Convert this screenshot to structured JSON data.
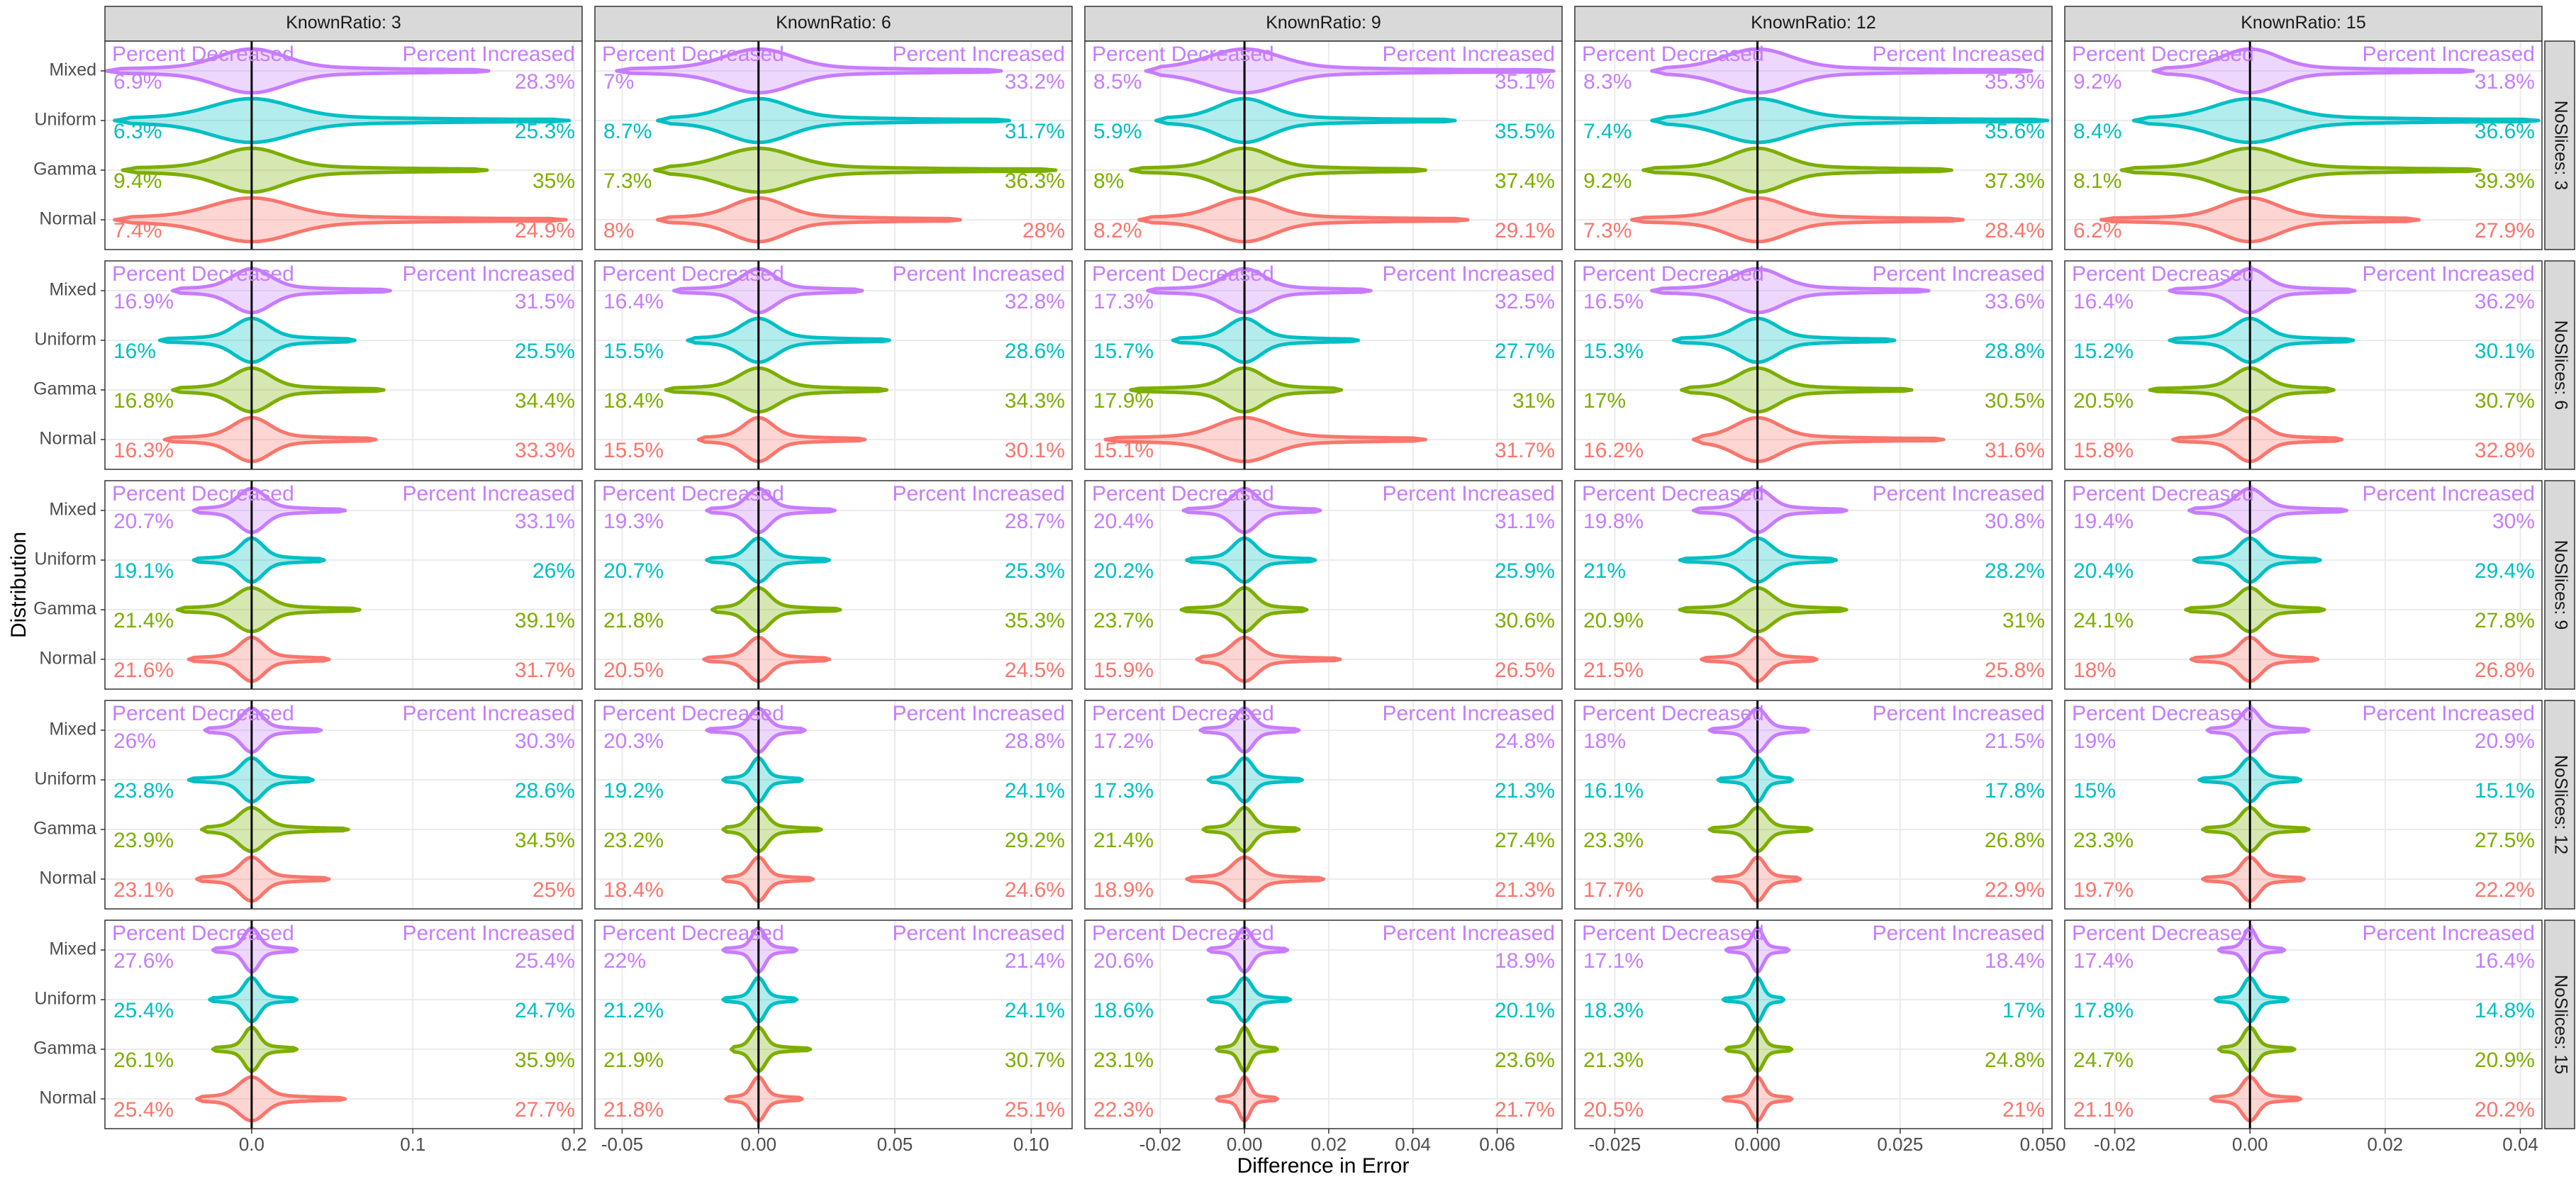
{
  "chart_data": {
    "type": "violin",
    "x_label": "Difference in Error",
    "y_label": "Distribution",
    "categories": [
      "Mixed",
      "Uniform",
      "Gamma",
      "Normal"
    ],
    "colors": [
      "#C77CFF",
      "#00BFC4",
      "#7CAE00",
      "#F8766D"
    ],
    "annotation_left": "Percent Decreased",
    "annotation_right": "Percent Increased",
    "annotation_color": "#C77CFF",
    "reference_line": 0,
    "grid": true,
    "column_labels": [
      "KnownRatio: 3",
      "KnownRatio: 6",
      "KnownRatio: 9",
      "KnownRatio: 12",
      "KnownRatio: 15"
    ],
    "row_labels": [
      "NoSlices: 3",
      "NoSlices: 6",
      "NoSlices: 9",
      "NoSlices: 12",
      "NoSlices: 15"
    ],
    "columns": [
      {
        "xlim": [
          -0.091,
          0.205
        ],
        "xticks": [
          {
            "value": 0,
            "label": "0.0"
          },
          0.1,
          0.2
        ]
      },
      {
        "xlim": [
          -0.06,
          0.115
        ],
        "xticks": [
          -0.05,
          {
            "value": 0,
            "label": "0.00"
          },
          0.05,
          {
            "value": 0.1,
            "label": "0.10"
          }
        ]
      },
      {
        "xlim": [
          -0.0379,
          0.0754
        ],
        "xticks": [
          -0.02,
          {
            "value": 0,
            "label": "0.00"
          },
          0.02,
          0.04,
          0.06
        ]
      },
      {
        "xlim": [
          -0.032,
          0.0516
        ],
        "xticks": [
          -0.025,
          {
            "value": 0,
            "label": "0.000"
          },
          0.025,
          {
            "value": 0.05,
            "label": "0.050"
          }
        ]
      },
      {
        "xlim": [
          -0.0274,
          0.0432
        ],
        "xticks": [
          -0.02,
          {
            "value": 0,
            "label": "0.00"
          },
          0.02,
          0.04
        ]
      }
    ],
    "panels": [
      [
        {
          "min": [
            -0.09,
            -0.085,
            -0.08,
            -0.085
          ],
          "max": [
            0.147,
            0.197,
            0.146,
            0.195
          ],
          "decreased": [
            6.9,
            6.3,
            9.4,
            7.4
          ],
          "decreased_labels": [
            "6.9%",
            "6.3%",
            "9.4%",
            "7.4%"
          ],
          "increased": [
            28.3,
            25.3,
            35,
            24.9
          ],
          "increased_labels": [
            "28.3%",
            "25.3%",
            "35%",
            "24.9%"
          ]
        },
        {
          "min": [
            -0.052,
            -0.037,
            -0.038,
            -0.037
          ],
          "max": [
            0.089,
            0.092,
            0.109,
            0.074
          ],
          "decreased": [
            7,
            8.7,
            7.3,
            8
          ],
          "decreased_labels": [
            "7%",
            "8.7%",
            "7.3%",
            "8%"
          ],
          "increased": [
            33.2,
            31.7,
            36.3,
            28
          ],
          "increased_labels": [
            "33.2%",
            "31.7%",
            "36.3%",
            "28%"
          ]
        },
        {
          "min": [
            -0.0234,
            -0.021,
            -0.027,
            -0.025
          ],
          "max": [
            0.0734,
            0.05,
            0.043,
            0.053
          ],
          "decreased": [
            8.5,
            5.9,
            8,
            8.2
          ],
          "decreased_labels": [
            "8.5%",
            "5.9%",
            "8%",
            "8.2%"
          ],
          "increased": [
            35.1,
            35.5,
            37.4,
            29.1
          ],
          "increased_labels": [
            "35.1%",
            "35.5%",
            "37.4%",
            "29.1%"
          ]
        },
        {
          "min": [
            -0.0185,
            -0.0185,
            -0.02,
            -0.022
          ],
          "max": [
            0.048,
            0.0508,
            0.034,
            0.036
          ],
          "decreased": [
            8.3,
            7.4,
            9.2,
            7.3
          ],
          "decreased_labels": [
            "8.3%",
            "7.4%",
            "9.2%",
            "7.3%"
          ],
          "increased": [
            35.3,
            35.6,
            37.3,
            28.4
          ],
          "increased_labels": [
            "35.3%",
            "35.6%",
            "37.3%",
            "28.4%"
          ]
        },
        {
          "min": [
            -0.0143,
            -0.0172,
            -0.019,
            -0.022
          ],
          "max": [
            0.033,
            0.0427,
            0.034,
            0.025
          ],
          "decreased": [
            9.2,
            8.4,
            8.1,
            6.2
          ],
          "decreased_labels": [
            "9.2%",
            "8.4%",
            "8.1%",
            "6.2%"
          ],
          "increased": [
            31.8,
            36.6,
            39.3,
            27.9
          ],
          "increased_labels": [
            "31.8%",
            "36.6%",
            "39.3%",
            "27.9%"
          ]
        }
      ],
      [
        {
          "min": [
            -0.049,
            -0.057,
            -0.049,
            -0.054
          ],
          "max": [
            0.086,
            0.064,
            0.082,
            0.077
          ],
          "decreased": [
            16.9,
            16,
            16.8,
            16.3
          ],
          "decreased_labels": [
            "16.9%",
            "16%",
            "16.8%",
            "16.3%"
          ],
          "increased": [
            31.5,
            25.5,
            34.4,
            33.3
          ],
          "increased_labels": [
            "31.5%",
            "25.5%",
            "34.4%",
            "33.3%"
          ]
        },
        {
          "min": [
            -0.031,
            -0.026,
            -0.034,
            -0.022
          ],
          "max": [
            0.038,
            0.048,
            0.047,
            0.039
          ],
          "decreased": [
            16.4,
            15.5,
            18.4,
            15.5
          ],
          "decreased_labels": [
            "16.4%",
            "15.5%",
            "18.4%",
            "15.5%"
          ],
          "increased": [
            32.8,
            28.6,
            34.3,
            30.1
          ],
          "increased_labels": [
            "32.8%",
            "28.6%",
            "34.3%",
            "30.1%"
          ]
        },
        {
          "min": [
            -0.023,
            -0.017,
            -0.027,
            -0.033
          ],
          "max": [
            0.03,
            0.027,
            0.023,
            0.043
          ],
          "decreased": [
            17.3,
            15.7,
            17.9,
            15.1
          ],
          "decreased_labels": [
            "17.3%",
            "15.7%",
            "17.9%",
            "15.1%"
          ],
          "increased": [
            32.5,
            27.7,
            31,
            31.7
          ],
          "increased_labels": [
            "32.5%",
            "27.7%",
            "31%",
            "31.7%"
          ]
        },
        {
          "min": [
            -0.0185,
            -0.0147,
            -0.0133,
            -0.0112
          ],
          "max": [
            0.03,
            0.024,
            0.027,
            0.0326
          ],
          "decreased": [
            16.5,
            15.3,
            17,
            16.2
          ],
          "decreased_labels": [
            "16.5%",
            "15.3%",
            "17%",
            "16.2%"
          ],
          "increased": [
            33.6,
            28.8,
            30.5,
            31.6
          ],
          "increased_labels": [
            "33.6%",
            "28.8%",
            "30.5%",
            "31.6%"
          ]
        },
        {
          "min": [
            -0.0119,
            -0.0119,
            -0.0148,
            -0.0114
          ],
          "max": [
            0.0155,
            0.0153,
            0.0124,
            0.0136
          ],
          "decreased": [
            16.4,
            15.2,
            20.5,
            15.8
          ],
          "decreased_labels": [
            "16.4%",
            "15.2%",
            "20.5%",
            "15.8%"
          ],
          "increased": [
            36.2,
            30.1,
            30.7,
            32.8
          ],
          "increased_labels": [
            "36.2%",
            "30.1%",
            "30.7%",
            "32.8%"
          ]
        }
      ],
      [
        {
          "min": [
            -0.036,
            -0.036,
            -0.046,
            -0.039
          ],
          "max": [
            0.058,
            0.045,
            0.067,
            0.048
          ],
          "decreased": [
            20.7,
            19.1,
            21.4,
            21.6
          ],
          "decreased_labels": [
            "20.7%",
            "19.1%",
            "21.4%",
            "21.6%"
          ],
          "increased": [
            33.1,
            26,
            39.1,
            31.7
          ],
          "increased_labels": [
            "33.1%",
            "26%",
            "39.1%",
            "31.7%"
          ]
        },
        {
          "min": [
            -0.019,
            -0.019,
            -0.017,
            -0.02
          ],
          "max": [
            0.028,
            0.026,
            0.03,
            0.026
          ],
          "decreased": [
            19.3,
            20.7,
            21.8,
            20.5
          ],
          "decreased_labels": [
            "19.3%",
            "20.7%",
            "21.8%",
            "20.5%"
          ],
          "increased": [
            28.7,
            25.3,
            35.3,
            24.5
          ],
          "increased_labels": [
            "28.7%",
            "25.3%",
            "35.3%",
            "24.5%"
          ]
        },
        {
          "min": [
            -0.0145,
            -0.0137,
            -0.015,
            -0.0113
          ],
          "max": [
            0.018,
            0.0168,
            0.0148,
            0.0227
          ],
          "decreased": [
            20.4,
            20.2,
            23.7,
            15.9
          ],
          "decreased_labels": [
            "20.4%",
            "20.2%",
            "23.7%",
            "15.9%"
          ],
          "increased": [
            31.1,
            25.9,
            30.6,
            26.5
          ],
          "increased_labels": [
            "31.1%",
            "25.9%",
            "30.6%",
            "26.5%"
          ]
        },
        {
          "min": [
            -0.0112,
            -0.0136,
            -0.0136,
            -0.0098
          ],
          "max": [
            0.0156,
            0.0138,
            0.0156,
            0.0104
          ],
          "decreased": [
            19.8,
            21,
            20.9,
            21.5
          ],
          "decreased_labels": [
            "19.8%",
            "21%",
            "20.9%",
            "21.5%"
          ],
          "increased": [
            30.8,
            28.2,
            31,
            25.8
          ],
          "increased_labels": [
            "30.8%",
            "28.2%",
            "31%",
            "25.8%"
          ]
        },
        {
          "min": [
            -0.009,
            -0.0083,
            -0.0095,
            -0.0087
          ],
          "max": [
            0.0143,
            0.0104,
            0.011,
            0.01
          ],
          "decreased": [
            19.4,
            20.4,
            24.1,
            18
          ],
          "decreased_labels": [
            "19.4%",
            "20.4%",
            "24.1%",
            "18%"
          ],
          "increased": [
            30,
            29.4,
            27.8,
            26.8
          ],
          "increased_labels": [
            "30%",
            "29.4%",
            "27.8%",
            "26.8%"
          ]
        }
      ],
      [
        {
          "min": [
            -0.029,
            -0.039,
            -0.031,
            -0.034
          ],
          "max": [
            0.043,
            0.038,
            0.06,
            0.048
          ],
          "decreased": [
            26,
            23.8,
            23.9,
            23.1
          ],
          "decreased_labels": [
            "26%",
            "23.8%",
            "23.9%",
            "23.1%"
          ],
          "increased": [
            30.3,
            28.6,
            34.5,
            25
          ],
          "increased_labels": [
            "30.3%",
            "28.6%",
            "34.5%",
            "25%"
          ]
        },
        {
          "min": [
            -0.019,
            -0.013,
            -0.013,
            -0.013
          ],
          "max": [
            0.017,
            0.016,
            0.023,
            0.02
          ],
          "decreased": [
            20.3,
            19.2,
            23.2,
            18.4
          ],
          "decreased_labels": [
            "20.3%",
            "19.2%",
            "23.2%",
            "18.4%"
          ],
          "increased": [
            28.8,
            24.1,
            29.2,
            24.6
          ],
          "increased_labels": [
            "28.8%",
            "24.1%",
            "29.2%",
            "24.6%"
          ]
        },
        {
          "min": [
            -0.0105,
            -0.0086,
            -0.0098,
            -0.0137
          ],
          "max": [
            0.0129,
            0.0137,
            0.0129,
            0.0188
          ],
          "decreased": [
            17.2,
            17.3,
            21.4,
            18.9
          ],
          "decreased_labels": [
            "17.2%",
            "17.3%",
            "21.4%",
            "18.9%"
          ],
          "increased": [
            24.8,
            21.3,
            27.4,
            21.3
          ],
          "increased_labels": [
            "24.8%",
            "21.3%",
            "27.4%",
            "21.3%"
          ]
        },
        {
          "min": [
            -0.0084,
            -0.0069,
            -0.0084,
            -0.0078
          ],
          "max": [
            0.0089,
            0.0061,
            0.0095,
            0.0075
          ],
          "decreased": [
            18,
            16.1,
            23.3,
            17.7
          ],
          "decreased_labels": [
            "18%",
            "16.1%",
            "23.3%",
            "17.7%"
          ],
          "increased": [
            21.5,
            17.8,
            26.8,
            22.9
          ],
          "increased_labels": [
            "21.5%",
            "17.8%",
            "26.8%",
            "22.9%"
          ]
        },
        {
          "min": [
            -0.0063,
            -0.0075,
            -0.007,
            -0.007
          ],
          "max": [
            0.0087,
            0.0075,
            0.0087,
            0.008
          ],
          "decreased": [
            19,
            15,
            23.3,
            19.7
          ],
          "decreased_labels": [
            "19%",
            "15%",
            "23.3%",
            "19.7%"
          ],
          "increased": [
            20.9,
            15.1,
            27.5,
            22.2
          ],
          "increased_labels": [
            "20.9%",
            "15.1%",
            "27.5%",
            "22.2%"
          ]
        }
      ],
      [
        {
          "min": [
            -0.024,
            -0.026,
            -0.024,
            -0.034
          ],
          "max": [
            0.028,
            0.028,
            0.028,
            0.058
          ],
          "decreased": [
            27.6,
            25.4,
            26.1,
            25.4
          ],
          "decreased_labels": [
            "27.6%",
            "25.4%",
            "26.1%",
            "25.4%"
          ],
          "increased": [
            25.4,
            24.7,
            35.9,
            27.7
          ],
          "increased_labels": [
            "25.4%",
            "24.7%",
            "35.9%",
            "27.7%"
          ]
        },
        {
          "min": [
            -0.013,
            -0.013,
            -0.01,
            -0.012
          ],
          "max": [
            0.014,
            0.014,
            0.019,
            0.016
          ],
          "decreased": [
            22,
            21.2,
            21.9,
            21.8
          ],
          "decreased_labels": [
            "22%",
            "21.2%",
            "21.9%",
            "21.8%"
          ],
          "increased": [
            21.4,
            24.1,
            30.7,
            25.1
          ],
          "increased_labels": [
            "21.4%",
            "24.1%",
            "30.7%",
            "25.1%"
          ]
        },
        {
          "min": [
            -0.0086,
            -0.0086,
            -0.0066,
            -0.0066
          ],
          "max": [
            0.0102,
            0.0109,
            0.0078,
            0.0078
          ],
          "decreased": [
            20.6,
            18.6,
            23.1,
            22.3
          ],
          "decreased_labels": [
            "20.6%",
            "18.6%",
            "23.1%",
            "22.3%"
          ],
          "increased": [
            18.9,
            20.1,
            23.6,
            21.7
          ],
          "increased_labels": [
            "18.9%",
            "20.1%",
            "23.6%",
            "21.7%"
          ]
        },
        {
          "min": [
            -0.0055,
            -0.006,
            -0.0055,
            -0.006
          ],
          "max": [
            0.0055,
            0.0046,
            0.006,
            0.006
          ],
          "decreased": [
            17.1,
            18.3,
            21.3,
            20.5
          ],
          "decreased_labels": [
            "17.1%",
            "18.3%",
            "21.3%",
            "20.5%"
          ],
          "increased": [
            18.4,
            17,
            24.8,
            21
          ],
          "increased_labels": [
            "18.4%",
            "17%",
            "24.8%",
            "21%"
          ]
        },
        {
          "min": [
            -0.0046,
            -0.0051,
            -0.0046,
            -0.0058
          ],
          "max": [
            0.0051,
            0.0056,
            0.0066,
            0.0075
          ],
          "decreased": [
            17.4,
            17.8,
            24.7,
            21.1
          ],
          "decreased_labels": [
            "17.4%",
            "17.8%",
            "24.7%",
            "21.1%"
          ],
          "increased": [
            16.4,
            14.8,
            20.9,
            20.2
          ],
          "increased_labels": [
            "16.4%",
            "14.8%",
            "20.9%",
            "20.2%"
          ]
        }
      ]
    ]
  }
}
